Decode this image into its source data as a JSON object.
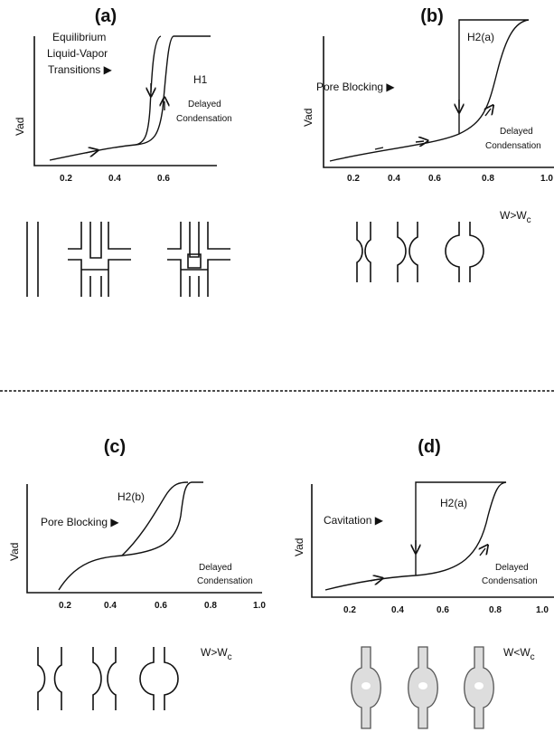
{
  "panels": [
    {
      "label": "(a)",
      "y_label": "Vad",
      "x_ticks": [
        "0.2",
        "0.4",
        "0.6"
      ],
      "annotations": [
        "Equilibrium",
        "Liquid-Vapor",
        "Transitions ▶",
        "H1",
        "Delayed",
        "Condensation"
      ]
    },
    {
      "label": "(b)",
      "y_label": "Vad",
      "x_ticks": [
        "0.2",
        "0.4",
        "0.6",
        "0.8",
        "1.0"
      ],
      "annotations": [
        "Pore Blocking ▶",
        "H2(a)",
        "Delayed",
        "Condensation"
      ],
      "condition": {
        "main": "W>W",
        "sub": "c"
      }
    },
    {
      "label": "(c)",
      "y_label": "Vad",
      "x_ticks": [
        "0.2",
        "0.4",
        "0.6",
        "0.8",
        "1.0"
      ],
      "annotations": [
        "H2(b)",
        "Pore Blocking ▶",
        "Delayed",
        "Condensation"
      ],
      "condition": {
        "main": "W>W",
        "sub": "c"
      }
    },
    {
      "label": "(d)",
      "y_label": "Vad",
      "x_ticks": [
        "0.2",
        "0.4",
        "0.6",
        "0.8",
        "1.0"
      ],
      "annotations": [
        "Cavitation ▶",
        "H2(a)",
        "Delayed",
        "Condensation"
      ],
      "condition": {
        "main": "W<W",
        "sub": "c"
      }
    }
  ]
}
